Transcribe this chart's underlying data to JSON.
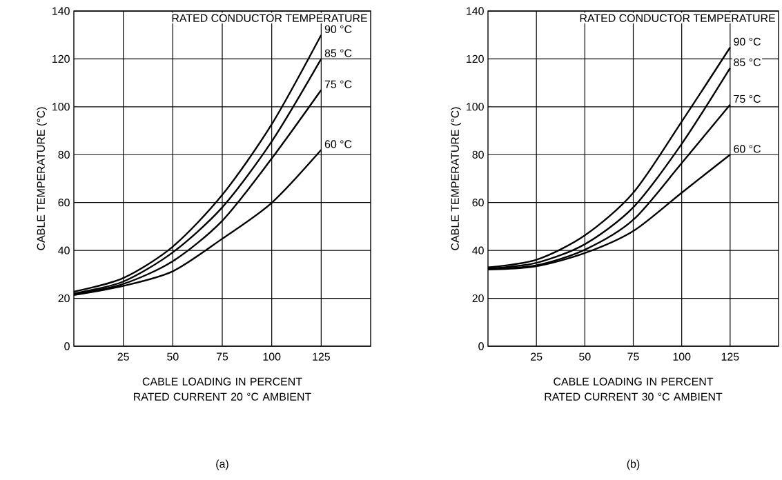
{
  "chart_data": [
    {
      "type": "line",
      "title": "(a)",
      "xlabel": "CABLE LOADING IN PERCENT RATED CURRENT 20 °C AMBIENT",
      "ylabel": "CABLE TEMPERATURE (°C)",
      "legend_title": "RATED CONDUCTOR TEMPERATURE",
      "x": [
        0,
        25,
        50,
        75,
        100,
        125
      ],
      "xlim": [
        0,
        150
      ],
      "xticks": [
        25,
        50,
        75,
        100,
        125
      ],
      "ylim": [
        0,
        140
      ],
      "yticks": [
        0,
        20,
        40,
        60,
        80,
        100,
        120,
        140
      ],
      "grid": true,
      "series": [
        {
          "name": "90 °C",
          "color": "#000000",
          "values": [
            22.8,
            28.5,
            41.6,
            63.2,
            92.7,
            130
          ]
        },
        {
          "name": "85 °C",
          "color": "#000000",
          "values": [
            22,
            27,
            39.2,
            58,
            85.5,
            120
          ]
        },
        {
          "name": "75 °C",
          "color": "#000000",
          "values": [
            21.6,
            26,
            35.5,
            52.4,
            78.4,
            107
          ]
        },
        {
          "name": "60 °C",
          "color": "#000000",
          "values": [
            21.4,
            25.2,
            31.3,
            44.9,
            59.9,
            82
          ]
        }
      ]
    },
    {
      "type": "line",
      "title": "(b)",
      "xlabel": "CABLE LOADING IN PERCENT RATED CURRENT 30 °C AMBIENT",
      "ylabel": "CABLE TEMPERATURE (°C)",
      "legend_title": "RATED CONDUCTOR TEMPERATURE",
      "x": [
        0,
        25,
        50,
        75,
        100,
        125
      ],
      "xlim": [
        0,
        150
      ],
      "xticks": [
        25,
        50,
        75,
        100,
        125
      ],
      "ylim": [
        0,
        140
      ],
      "yticks": [
        0,
        20,
        40,
        60,
        80,
        100,
        120,
        140
      ],
      "grid": true,
      "series": [
        {
          "name": "90 °C",
          "color": "#000000",
          "values": [
            32.9,
            36.1,
            46.3,
            64.1,
            93.8,
            124.8
          ]
        },
        {
          "name": "85 °C",
          "color": "#000000",
          "values": [
            32.4,
            34.8,
            42.6,
            58,
            84.5,
            116.2
          ]
        },
        {
          "name": "75 °C",
          "color": "#000000",
          "values": [
            32.3,
            33.8,
            40.3,
            52.8,
            76.5,
            100.9
          ]
        },
        {
          "name": "60 °C",
          "color": "#000000",
          "values": [
            32,
            33.4,
            38.9,
            48.1,
            64.1,
            80
          ]
        }
      ]
    }
  ]
}
